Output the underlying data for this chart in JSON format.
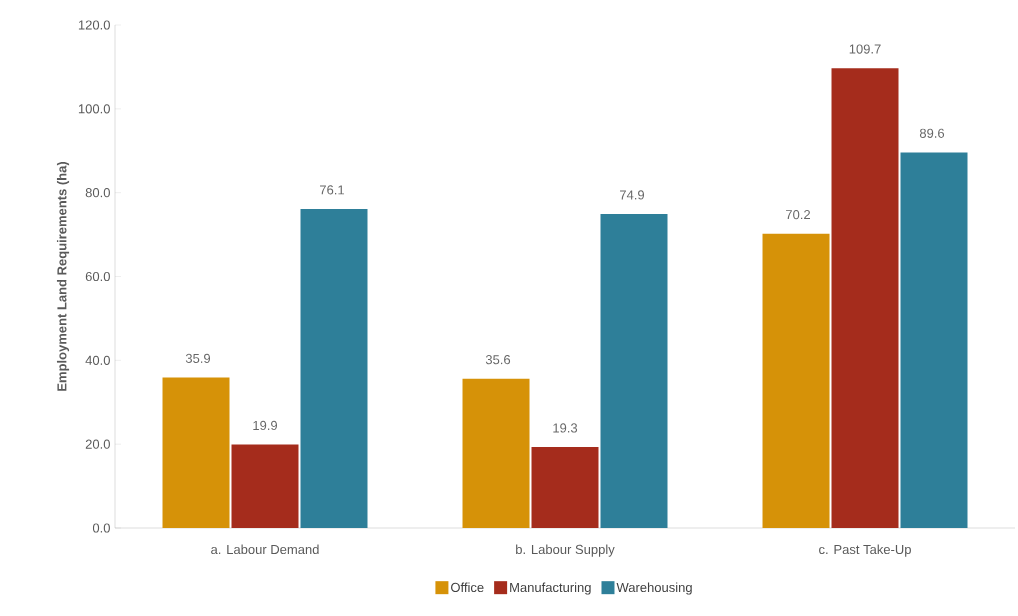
{
  "chart_data": {
    "type": "bar",
    "ylabel": "Employment Land Requirements (ha)",
    "categories": [
      "a. Labour Demand",
      "b. Labour Supply",
      "c. Past Take-Up"
    ],
    "series": [
      {
        "name": "Office",
        "color": "#d69208",
        "values": [
          35.9,
          35.6,
          70.2
        ]
      },
      {
        "name": "Manufacturing",
        "color": "#a52c1c",
        "values": [
          19.9,
          19.3,
          109.7
        ]
      },
      {
        "name": "Warehousing",
        "color": "#2e7f99",
        "values": [
          76.1,
          74.9,
          89.6
        ]
      }
    ],
    "ylim": [
      0,
      120
    ],
    "yticks": [
      {
        "value": 0,
        "label": "0.0"
      },
      {
        "value": 20,
        "label": "20.0"
      },
      {
        "value": 40,
        "label": "40.0"
      },
      {
        "value": 60,
        "label": "60.0"
      },
      {
        "value": 80,
        "label": "80.0"
      },
      {
        "value": 100,
        "label": "100.0"
      },
      {
        "value": 120,
        "label": "120.0"
      }
    ],
    "data_labels": true,
    "grid": false,
    "legend": "bottom"
  }
}
